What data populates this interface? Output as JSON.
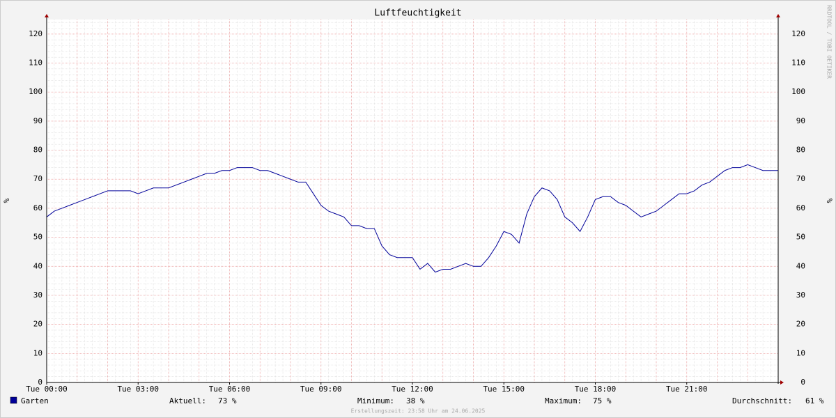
{
  "chart_data": {
    "type": "line",
    "title": "Luftfeuchtigkeit",
    "ylabel": "%",
    "watermark": "RRDTOOL / TOBI OETIKER",
    "footer": "Erstellungszeit: 23:58 Uhr am 24.06.2025",
    "x": [
      0,
      0.25,
      0.5,
      0.75,
      1,
      1.25,
      1.5,
      1.75,
      2,
      2.25,
      2.5,
      2.75,
      3,
      3.25,
      3.5,
      3.75,
      4,
      4.25,
      4.5,
      4.75,
      5,
      5.25,
      5.5,
      5.75,
      6,
      6.25,
      6.5,
      6.75,
      7,
      7.25,
      7.5,
      7.75,
      8,
      8.25,
      8.5,
      8.75,
      9,
      9.25,
      9.5,
      9.75,
      10,
      10.25,
      10.5,
      10.75,
      11,
      11.25,
      11.5,
      11.75,
      12,
      12.25,
      12.5,
      12.75,
      13,
      13.25,
      13.5,
      13.75,
      14,
      14.25,
      14.5,
      14.75,
      15,
      15.25,
      15.5,
      15.75,
      16,
      16.25,
      16.5,
      16.75,
      17,
      17.25,
      17.5,
      17.75,
      18,
      18.25,
      18.5,
      18.75,
      19,
      19.25,
      19.5,
      19.75,
      20,
      20.25,
      20.5,
      20.75,
      21,
      21.25,
      21.5,
      21.75,
      22,
      22.25,
      22.5,
      22.75,
      23,
      23.25,
      23.5,
      23.75,
      24
    ],
    "series": [
      {
        "name": "Garten",
        "color": "#000099",
        "values": [
          57,
          59,
          60,
          61,
          62,
          63,
          64,
          65,
          66,
          66,
          66,
          66,
          65,
          66,
          67,
          67,
          67,
          68,
          69,
          70,
          71,
          72,
          72,
          73,
          73,
          74,
          74,
          74,
          73,
          73,
          72,
          71,
          70,
          69,
          69,
          65,
          61,
          59,
          58,
          57,
          54,
          54,
          53,
          53,
          47,
          44,
          43,
          43,
          43,
          39,
          41,
          38,
          39,
          39,
          40,
          41,
          40,
          40,
          43,
          47,
          52,
          51,
          48,
          58,
          64,
          67,
          66,
          63,
          57,
          55,
          52,
          57,
          63,
          64,
          64,
          62,
          61,
          59,
          57,
          58,
          59,
          61,
          63,
          65,
          65,
          66,
          68,
          69,
          71,
          73,
          74,
          74,
          75,
          74,
          73,
          73,
          73
        ]
      }
    ],
    "xlim": [
      0,
      24
    ],
    "xticks": [
      {
        "value": 0,
        "label": "Tue 00:00"
      },
      {
        "value": 3,
        "label": "Tue 03:00"
      },
      {
        "value": 6,
        "label": "Tue 06:00"
      },
      {
        "value": 9,
        "label": "Tue 09:00"
      },
      {
        "value": 12,
        "label": "Tue 12:00"
      },
      {
        "value": 15,
        "label": "Tue 15:00"
      },
      {
        "value": 18,
        "label": "Tue 18:00"
      },
      {
        "value": 21,
        "label": "Tue 21:00"
      }
    ],
    "xgrid": [
      1,
      2,
      4,
      5,
      7,
      8,
      10,
      11,
      13,
      14,
      16,
      17,
      19,
      20,
      22,
      23,
      24
    ],
    "ylim": [
      0,
      125
    ],
    "yticks": [
      0,
      10,
      20,
      30,
      40,
      50,
      60,
      70,
      80,
      90,
      100,
      110,
      120
    ],
    "minor_grid_step": {
      "x": 0.25,
      "y": 2
    },
    "grid": true,
    "stats": [
      {
        "label": "Aktuell:",
        "value": "73 %"
      },
      {
        "label": "Minimum:",
        "value": "38 %"
      },
      {
        "label": "Maximum:",
        "value": "75 %"
      },
      {
        "label": "Durchschnitt:",
        "value": "61 %"
      }
    ]
  }
}
